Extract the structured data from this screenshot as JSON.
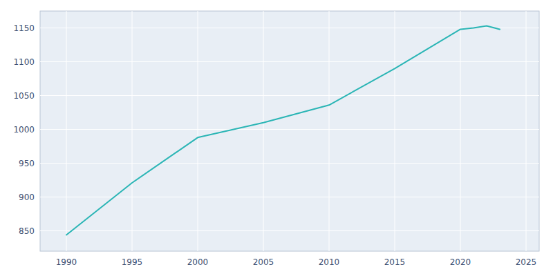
{
  "chart_data": {
    "type": "line",
    "x": [
      1990,
      1995,
      2000,
      2005,
      2010,
      2015,
      2020,
      2021,
      2022,
      2023
    ],
    "values": [
      844,
      921,
      988,
      1010,
      1036,
      1090,
      1148,
      1150,
      1153,
      1148
    ],
    "color": "#2ab5b5",
    "xlim": [
      1988,
      2026
    ],
    "ylim": [
      820,
      1175
    ],
    "xticks": [
      1990,
      1995,
      2000,
      2005,
      2010,
      2015,
      2020,
      2025
    ],
    "yticks": [
      850,
      900,
      950,
      1000,
      1050,
      1100,
      1150
    ],
    "grid": true
  }
}
